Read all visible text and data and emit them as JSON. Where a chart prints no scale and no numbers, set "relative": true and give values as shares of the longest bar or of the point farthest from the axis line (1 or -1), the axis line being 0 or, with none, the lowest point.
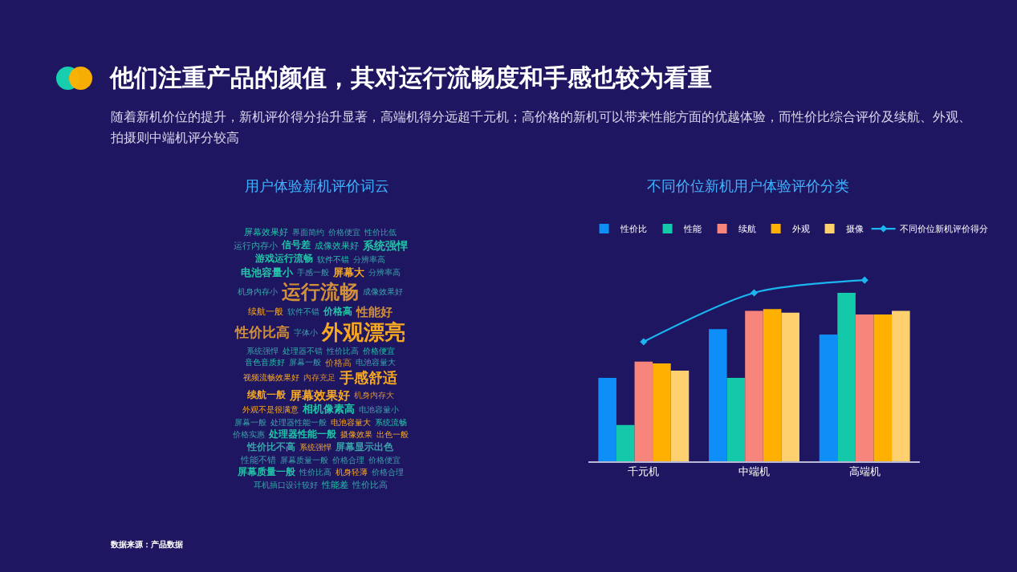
{
  "chart_data": [
    {
      "type": "other",
      "title": "他们注重产品的颜值，其对运行流畅度和手感也较为看重",
      "subtitle": "随着新机价位的提升，新机评价得分抬升显著，高端机得分远超千元机；高价格的新机可以带来性能方面的优越体验，而性价比综合评价及续航、外观、拍摄则中端机评分较高",
      "annotations": [
        "数据来源：产品数据"
      ]
    },
    {
      "type": "other",
      "title": "用户体验新机评价词云",
      "annotations": [
        "屏幕效果好",
        "界面简约",
        "价格便宜",
        "性价比低",
        "运行内存小",
        "信号差",
        "成像效果好",
        "系统强悍",
        "游戏运行流畅",
        "软件不错",
        "分辨率高",
        "电池容量小",
        "手感一般",
        "屏幕大",
        "分辨率高",
        "机身内存小",
        "运行流畅",
        "成像效果好",
        "续航一般",
        "软件不错",
        "价格高",
        "性能好",
        "性价比高",
        "字体小",
        "外观漂亮",
        "系统强悍",
        "处理器不错",
        "性价比高",
        "价格便宜",
        "音色音质好",
        "屏幕一般",
        "价格高",
        "电池容量大",
        "视频流畅效果好",
        "内存充足",
        "手感舒适",
        "续航一般",
        "屏幕效果好",
        "机身内存大",
        "外观不是很满意",
        "相机像素高",
        "电池容量小",
        "屏幕一般",
        "处理器性能一般",
        "电池容量大",
        "系统流畅",
        "价格实惠",
        "处理器性能一般",
        "摄像效果",
        "出色一般",
        "性价比不高",
        "系统强悍",
        "屏幕显示出色",
        "性能不错",
        "屏幕质量一般",
        "价格合理",
        "价格便宜",
        "屏幕质量一般",
        "性价比高",
        "机身轻薄",
        "价格合理",
        "耳机插口设计较好",
        "性能差",
        "性价比高"
      ]
    },
    {
      "type": "bar",
      "title": "不同价位新机用户体验评价分类",
      "categories": [
        "千元机",
        "中端机",
        "高端机"
      ],
      "relative": true,
      "legend": "top",
      "marker": "diamond",
      "series": [
        {
          "name": "性价比",
          "color": "#0d8ff7",
          "values": [
            0.46,
            0.73,
            0.7
          ]
        },
        {
          "name": "性能",
          "color": "#13c9a9",
          "values": [
            0.2,
            0.46,
            0.93
          ]
        },
        {
          "name": "续航",
          "color": "#f7857c",
          "values": [
            0.55,
            0.83,
            0.81
          ]
        },
        {
          "name": "外观",
          "color": "#ffb000",
          "values": [
            0.54,
            0.84,
            0.81
          ]
        },
        {
          "name": "摄像",
          "color": "#ffd06e",
          "values": [
            0.5,
            0.82,
            0.83
          ]
        },
        {
          "name": "不同价位新机评价得分",
          "type": "line",
          "color": "#1bb6f0",
          "values": [
            0.66,
            0.93,
            1
          ]
        }
      ]
    }
  ]
}
